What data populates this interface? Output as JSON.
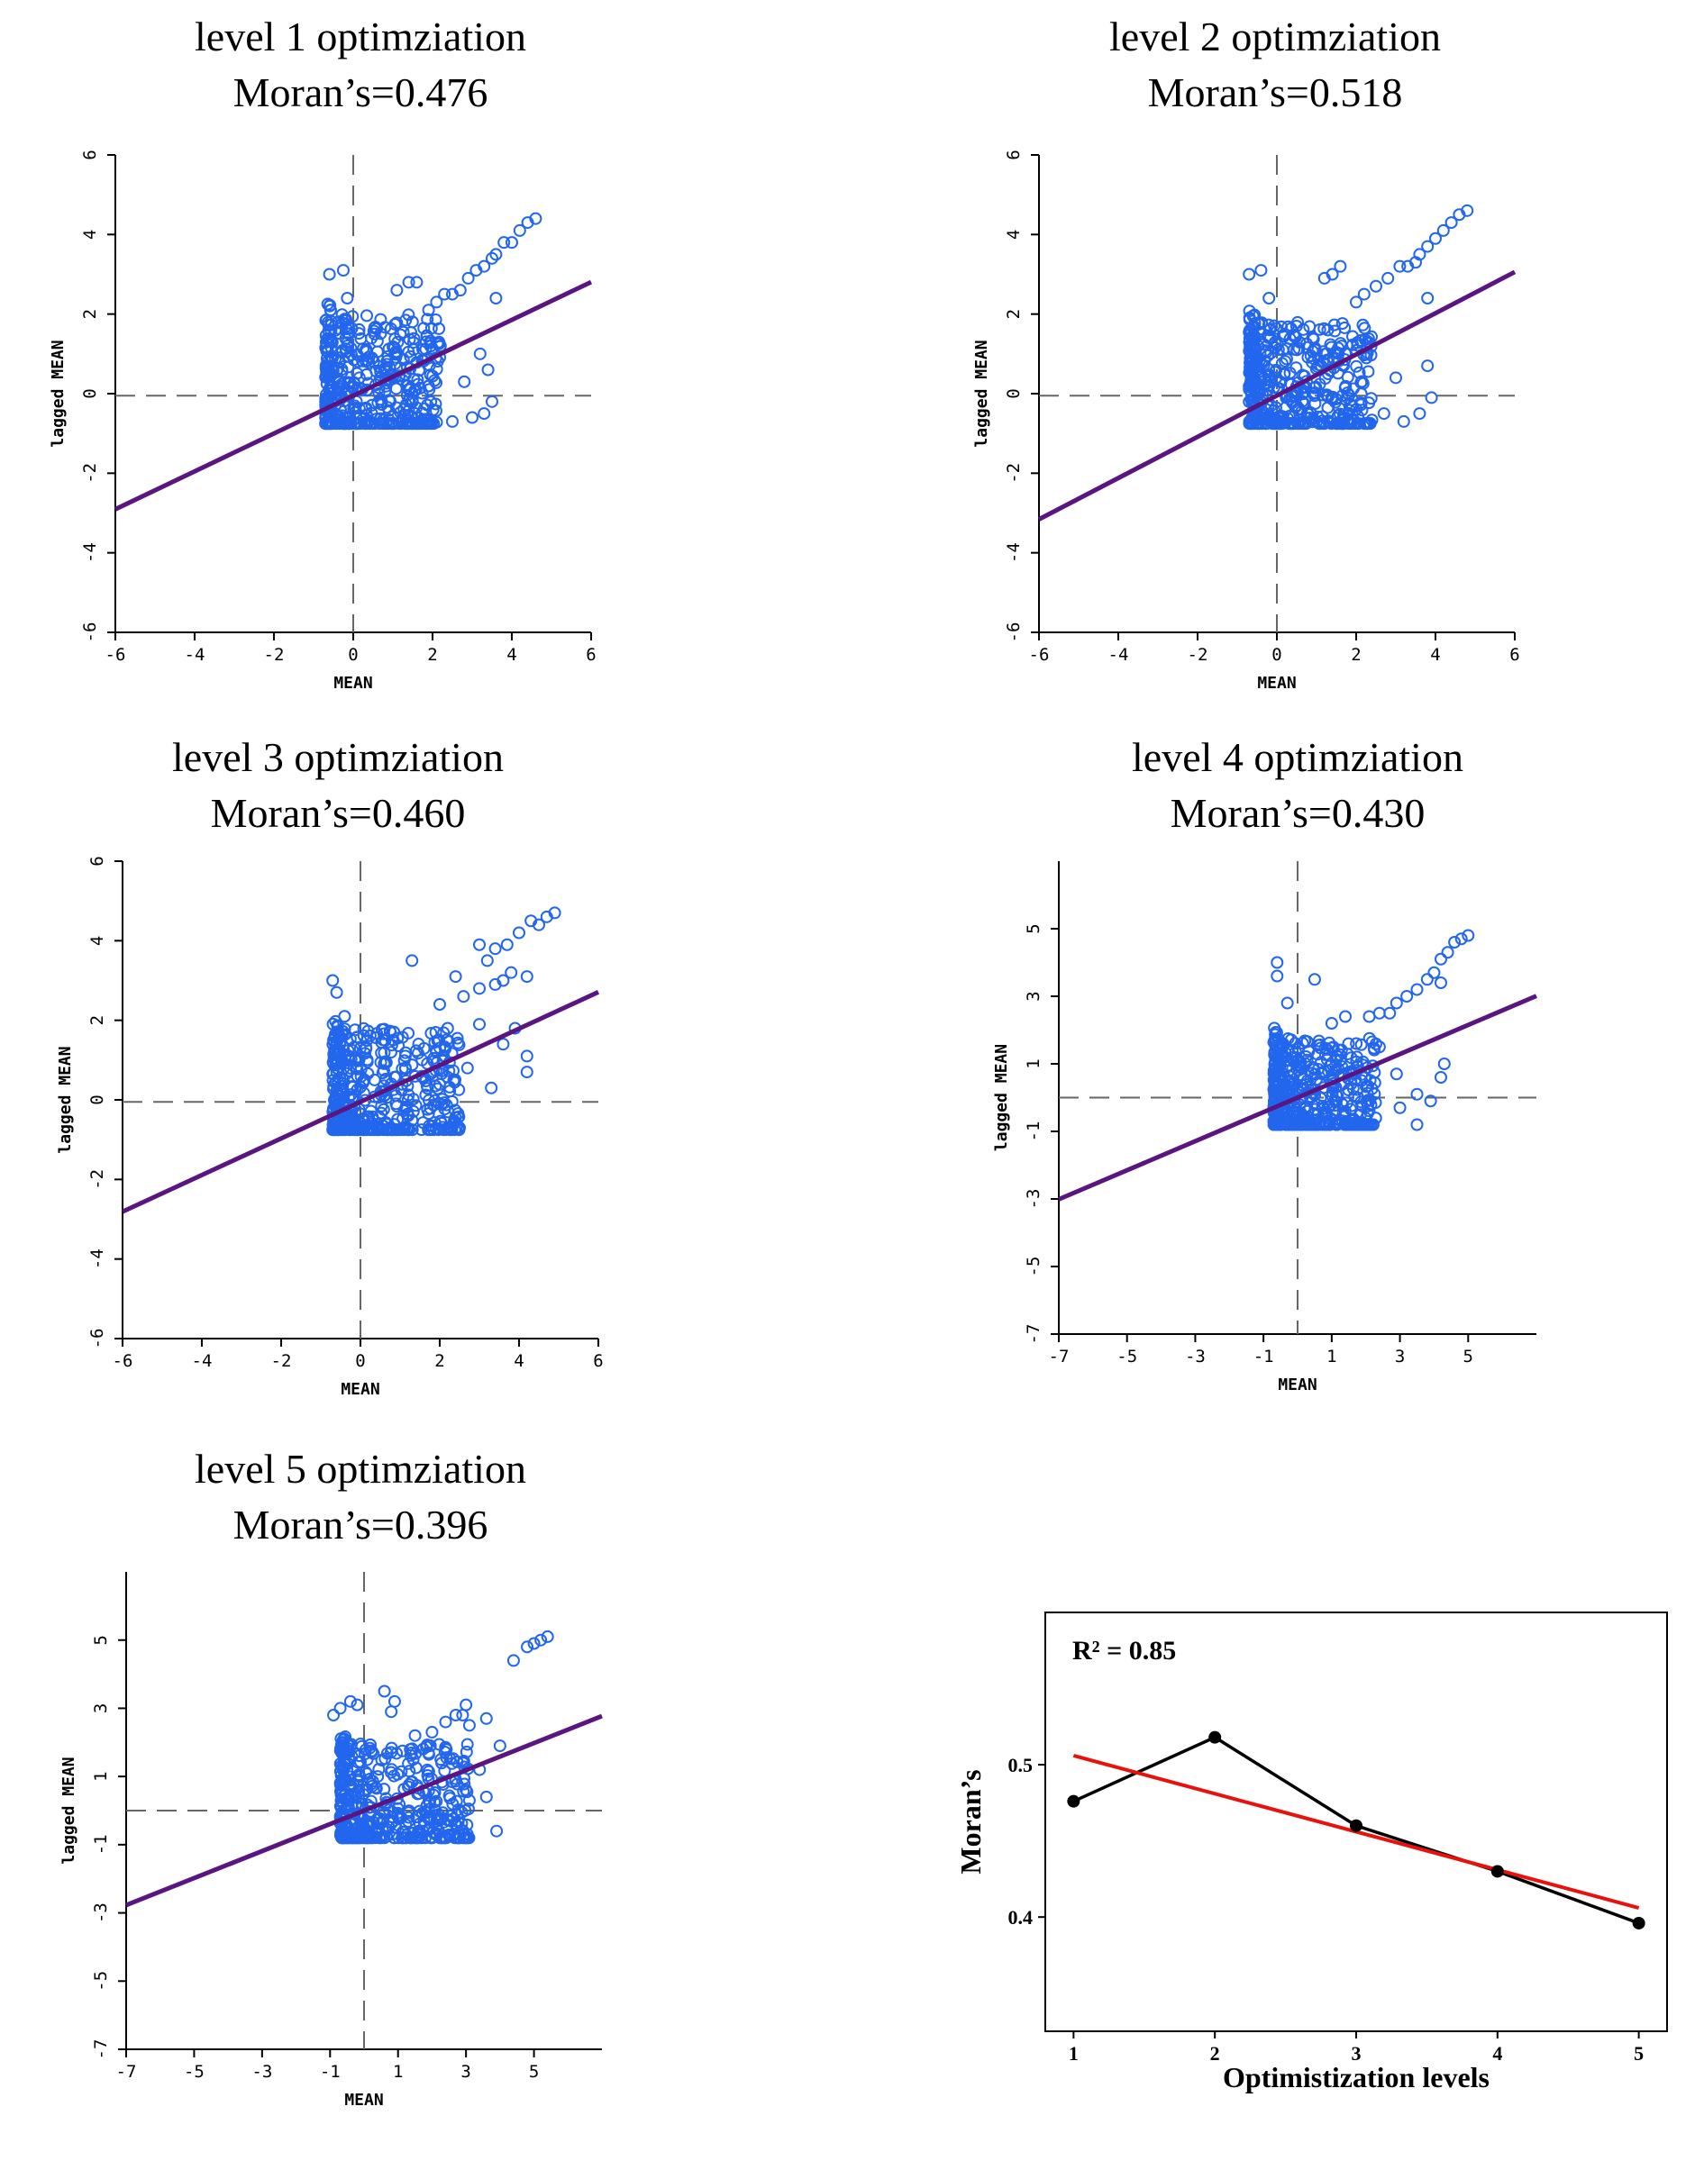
{
  "figure": {
    "panels": [
      {
        "title": "level 1 optimziation",
        "moran": "Moran’s=0.476"
      },
      {
        "title": "level 2 optimziation",
        "moran": "Moran’s=0.518"
      },
      {
        "title": "level 3 optimziation",
        "moran": "Moran’s=0.460"
      },
      {
        "title": "level 4 optimziation",
        "moran": "Moran’s=0.430"
      },
      {
        "title": "level 5 optimziation",
        "moran": "Moran’s=0.396"
      }
    ]
  },
  "chart_data": [
    {
      "type": "scatter",
      "title": "level 1 optimziation",
      "subtitle": "Moran’s=0.476",
      "xlabel": "MEAN",
      "ylabel": "lagged MEAN",
      "xlim": [
        -6,
        6
      ],
      "ylim": [
        -6,
        6
      ],
      "xticks": [
        -6,
        -4,
        -2,
        0,
        2,
        4,
        6
      ],
      "yticks": [
        -6,
        -4,
        -2,
        0,
        2,
        4,
        6
      ],
      "xtick_labels": [
        "-6",
        "-4",
        "-2",
        "0",
        "2",
        "4",
        "6"
      ],
      "ytick_labels": [
        "-6",
        "-4",
        "-2",
        "0",
        "2",
        "4",
        "6"
      ],
      "regression_slope": 0.476,
      "mean_x": 0,
      "mean_y": -0.05,
      "outliers": [
        [
          4.6,
          4.4
        ],
        [
          4.4,
          4.3
        ],
        [
          4.2,
          4.1
        ],
        [
          4.0,
          3.8
        ],
        [
          3.8,
          3.8
        ],
        [
          3.6,
          3.5
        ],
        [
          3.5,
          3.4
        ],
        [
          3.3,
          3.2
        ],
        [
          3.1,
          3.1
        ],
        [
          2.9,
          2.9
        ],
        [
          2.7,
          2.6
        ],
        [
          2.5,
          2.5
        ],
        [
          2.3,
          2.5
        ],
        [
          2.1,
          2.3
        ],
        [
          1.9,
          2.1
        ],
        [
          1.6,
          2.8
        ],
        [
          1.4,
          2.8
        ],
        [
          1.1,
          2.6
        ],
        [
          -0.6,
          3.0
        ],
        [
          -0.25,
          3.1
        ],
        [
          -0.15,
          2.4
        ],
        [
          3.6,
          2.4
        ],
        [
          3.2,
          1.0
        ],
        [
          3.4,
          0.6
        ],
        [
          3.5,
          -0.2
        ],
        [
          3.3,
          -0.5
        ],
        [
          3.0,
          -0.6
        ],
        [
          2.8,
          0.3
        ],
        [
          2.5,
          -0.7
        ],
        [
          2.2,
          1.2
        ]
      ],
      "cluster": {
        "x": [
          -0.7,
          2.2
        ],
        "y": [
          -0.75,
          2.0
        ],
        "count": 420
      }
    },
    {
      "type": "scatter",
      "title": "level 2 optimziation",
      "subtitle": "Moran’s=0.518",
      "xlabel": "MEAN",
      "ylabel": "lagged MEAN",
      "xlim": [
        -6,
        6
      ],
      "ylim": [
        -6,
        6
      ],
      "xticks": [
        -6,
        -4,
        -2,
        0,
        2,
        4,
        6
      ],
      "yticks": [
        -6,
        -4,
        -2,
        0,
        2,
        4,
        6
      ],
      "xtick_labels": [
        "-6",
        "-4",
        "-2",
        "0",
        "2",
        "4",
        "6"
      ],
      "ytick_labels": [
        "-6",
        "-4",
        "-2",
        "0",
        "2",
        "4",
        "6"
      ],
      "regression_slope": 0.518,
      "mean_x": 0,
      "mean_y": -0.05,
      "outliers": [
        [
          4.8,
          4.6
        ],
        [
          4.6,
          4.5
        ],
        [
          4.4,
          4.3
        ],
        [
          4.2,
          4.1
        ],
        [
          4.0,
          3.9
        ],
        [
          3.8,
          3.7
        ],
        [
          3.6,
          3.5
        ],
        [
          3.5,
          3.3
        ],
        [
          3.3,
          3.2
        ],
        [
          3.1,
          3.2
        ],
        [
          2.8,
          2.9
        ],
        [
          2.5,
          2.7
        ],
        [
          2.2,
          2.5
        ],
        [
          2.0,
          2.3
        ],
        [
          1.6,
          3.2
        ],
        [
          1.4,
          3.0
        ],
        [
          1.2,
          2.9
        ],
        [
          -0.7,
          3.0
        ],
        [
          -0.4,
          3.1
        ],
        [
          -0.2,
          2.4
        ],
        [
          3.8,
          2.4
        ],
        [
          3.8,
          0.7
        ],
        [
          3.9,
          -0.1
        ],
        [
          3.6,
          -0.5
        ],
        [
          3.2,
          -0.7
        ],
        [
          3.0,
          0.4
        ],
        [
          2.7,
          -0.5
        ],
        [
          2.3,
          1.3
        ]
      ],
      "cluster": {
        "x": [
          -0.7,
          2.4
        ],
        "y": [
          -0.75,
          1.8
        ],
        "count": 420
      }
    },
    {
      "type": "scatter",
      "title": "level 3 optimziation",
      "subtitle": "Moran’s=0.460",
      "xlabel": "MEAN",
      "ylabel": "lagged MEAN",
      "xlim": [
        -6,
        6
      ],
      "ylim": [
        -6,
        6
      ],
      "xticks": [
        -6,
        -4,
        -2,
        0,
        2,
        4,
        6
      ],
      "yticks": [
        -6,
        -4,
        -2,
        0,
        2,
        4,
        6
      ],
      "xtick_labels": [
        "-6",
        "-4",
        "-2",
        "0",
        "2",
        "4",
        "6"
      ],
      "ytick_labels": [
        "-6",
        "-4",
        "-2",
        "0",
        "2",
        "4",
        "6"
      ],
      "regression_slope": 0.46,
      "mean_x": 0,
      "mean_y": -0.05,
      "outliers": [
        [
          4.9,
          4.7
        ],
        [
          4.7,
          4.6
        ],
        [
          4.5,
          4.4
        ],
        [
          4.3,
          4.5
        ],
        [
          4.0,
          4.2
        ],
        [
          3.7,
          3.9
        ],
        [
          3.4,
          3.8
        ],
        [
          3.0,
          3.9
        ],
        [
          3.2,
          3.5
        ],
        [
          3.8,
          3.2
        ],
        [
          3.6,
          3.0
        ],
        [
          3.4,
          2.9
        ],
        [
          3.0,
          2.8
        ],
        [
          2.6,
          2.6
        ],
        [
          2.4,
          3.1
        ],
        [
          2.0,
          2.4
        ],
        [
          1.3,
          3.5
        ],
        [
          -0.7,
          3.0
        ],
        [
          -0.6,
          2.7
        ],
        [
          -0.4,
          2.1
        ],
        [
          4.2,
          3.1
        ],
        [
          4.2,
          1.1
        ],
        [
          4.2,
          0.7
        ],
        [
          3.9,
          1.8
        ],
        [
          3.6,
          1.4
        ],
        [
          3.3,
          0.3
        ],
        [
          2.7,
          0.8
        ],
        [
          2.5,
          -0.7
        ],
        [
          3.0,
          1.9
        ],
        [
          2.2,
          1.8
        ]
      ],
      "cluster": {
        "x": [
          -0.7,
          2.5
        ],
        "y": [
          -0.75,
          1.8
        ],
        "count": 420
      }
    },
    {
      "type": "scatter",
      "title": "level 4 optimziation",
      "subtitle": "Moran’s=0.430",
      "xlabel": "MEAN",
      "ylabel": "lagged MEAN",
      "xlim": [
        -7,
        7
      ],
      "ylim": [
        -7,
        7
      ],
      "xticks": [
        -7,
        -5,
        -3,
        -1,
        1,
        3,
        5
      ],
      "yticks": [
        -7,
        -5,
        -3,
        -1,
        1,
        3,
        5
      ],
      "xtick_labels": [
        "-7",
        "-5",
        "-3",
        "-1",
        "1",
        "3",
        "5"
      ],
      "ytick_labels": [
        "-7",
        "-5",
        "-3",
        "-1",
        "1",
        "3",
        "5"
      ],
      "regression_slope": 0.43,
      "mean_x": 0,
      "mean_y": 0,
      "outliers": [
        [
          5.0,
          4.8
        ],
        [
          4.8,
          4.7
        ],
        [
          4.6,
          4.6
        ],
        [
          4.4,
          4.3
        ],
        [
          4.2,
          4.1
        ],
        [
          4.0,
          3.7
        ],
        [
          3.8,
          3.5
        ],
        [
          3.5,
          3.2
        ],
        [
          3.2,
          3.0
        ],
        [
          2.9,
          2.8
        ],
        [
          2.7,
          2.5
        ],
        [
          2.4,
          2.5
        ],
        [
          2.1,
          2.4
        ],
        [
          1.4,
          2.4
        ],
        [
          1.0,
          2.2
        ],
        [
          -0.6,
          4.0
        ],
        [
          -0.6,
          3.6
        ],
        [
          0.5,
          3.5
        ],
        [
          -0.3,
          2.8
        ],
        [
          4.2,
          3.4
        ],
        [
          4.3,
          1.0
        ],
        [
          4.2,
          0.6
        ],
        [
          3.9,
          -0.1
        ],
        [
          3.5,
          0.1
        ],
        [
          3.0,
          -0.3
        ],
        [
          2.9,
          0.7
        ],
        [
          3.5,
          -0.8
        ],
        [
          2.4,
          1.5
        ]
      ],
      "cluster": {
        "x": [
          -0.7,
          2.3
        ],
        "y": [
          -0.8,
          1.8
        ],
        "count": 420
      }
    },
    {
      "type": "scatter",
      "title": "level 5 optimziation",
      "subtitle": "Moran’s=0.396",
      "xlabel": "MEAN",
      "ylabel": "lagged MEAN",
      "xlim": [
        -7,
        7
      ],
      "ylim": [
        -7,
        7
      ],
      "xticks": [
        -7,
        -5,
        -3,
        -1,
        1,
        3,
        5
      ],
      "yticks": [
        -7,
        -5,
        -3,
        -1,
        1,
        3,
        5
      ],
      "xtick_labels": [
        "-7",
        "-5",
        "-3",
        "-1",
        "1",
        "3",
        "5"
      ],
      "ytick_labels": [
        "-7",
        "-5",
        "-3",
        "-1",
        "1",
        "3",
        "5"
      ],
      "regression_slope": 0.396,
      "mean_x": 0,
      "mean_y": 0,
      "outliers": [
        [
          5.4,
          5.1
        ],
        [
          5.2,
          5.0
        ],
        [
          5.0,
          4.9
        ],
        [
          4.8,
          4.8
        ],
        [
          4.4,
          4.4
        ],
        [
          -0.9,
          2.8
        ],
        [
          -0.7,
          3.0
        ],
        [
          -0.4,
          3.2
        ],
        [
          -0.2,
          3.1
        ],
        [
          0.6,
          3.5
        ],
        [
          0.9,
          3.2
        ],
        [
          0.8,
          2.9
        ],
        [
          1.5,
          2.2
        ],
        [
          2.0,
          2.3
        ],
        [
          2.4,
          2.6
        ],
        [
          2.7,
          2.8
        ],
        [
          3.0,
          3.1
        ],
        [
          2.9,
          2.8
        ],
        [
          3.1,
          2.5
        ],
        [
          3.6,
          2.7
        ],
        [
          4.0,
          1.9
        ],
        [
          3.6,
          0.4
        ],
        [
          3.9,
          -0.6
        ],
        [
          3.4,
          1.2
        ],
        [
          3.1,
          0.3
        ]
      ],
      "cluster": {
        "x": [
          -0.7,
          3.1
        ],
        "y": [
          -0.8,
          2.0
        ],
        "count": 420
      }
    },
    {
      "type": "line",
      "xlabel": "Optimistization levels",
      "ylabel": "Moran’s",
      "annotation": "R² = 0.85",
      "x": [
        1,
        2,
        3,
        4,
        5
      ],
      "xtick_labels": [
        "1",
        "2",
        "3",
        "4",
        "5"
      ],
      "yticks": [
        0.4,
        0.5
      ],
      "ytick_labels": [
        "0.4",
        "0.5"
      ],
      "xlim": [
        0.8,
        5.2
      ],
      "ylim": [
        0.325,
        0.6
      ],
      "series": [
        {
          "name": "Moran’s",
          "values": [
            0.476,
            0.518,
            0.46,
            0.43,
            0.396
          ],
          "color": "#000000"
        },
        {
          "name": "Linear fit",
          "values": [
            0.506,
            0.481,
            0.456,
            0.431,
            0.406
          ],
          "color": "#e8120c"
        }
      ]
    }
  ]
}
